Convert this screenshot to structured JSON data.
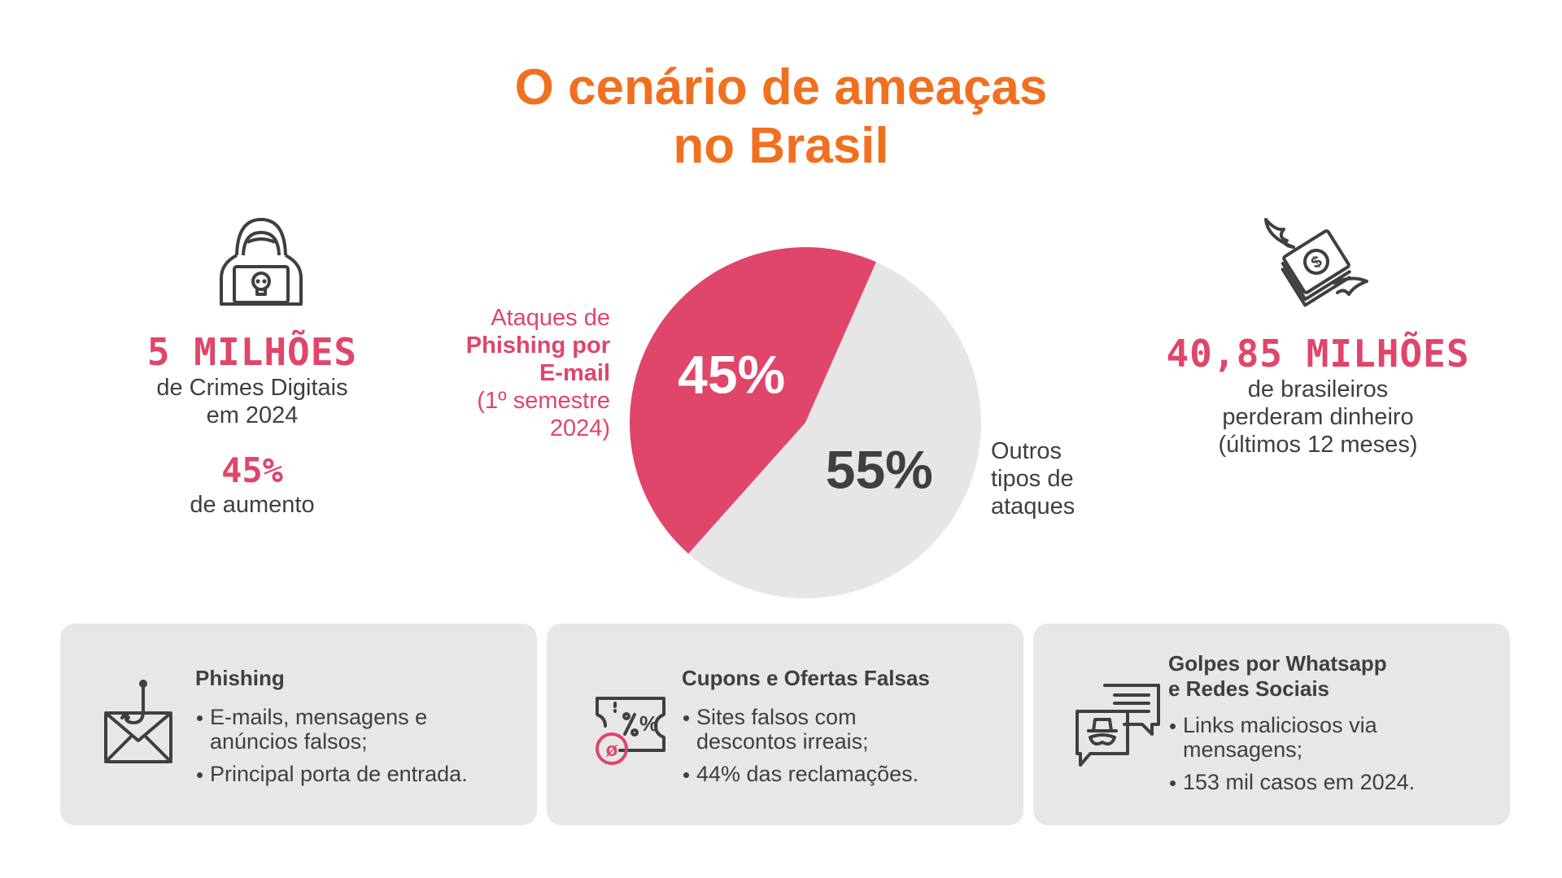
{
  "title": {
    "line1": "O cenário de ameaças",
    "line2": "no Brasil"
  },
  "left_stat": {
    "icon": "hacker-icon",
    "big": "5 MILHÕES",
    "line1": "de Crimes Digitais",
    "line2": "em 2024",
    "pct": "45%",
    "pct_text": "de aumento"
  },
  "right_stat": {
    "icon": "flying-money-icon",
    "big": "40,85 MILHÕES",
    "line1": "de brasileiros",
    "line2": "perderam dinheiro",
    "line3": "(últimos 12 meses)"
  },
  "chart_data": {
    "type": "pie",
    "slices": [
      {
        "label_lines": [
          "Ataques de",
          "Phishing por",
          "E-mail",
          "(1º semestre",
          "2024)"
        ],
        "value": 45,
        "display": "45%",
        "color": "#e0456a"
      },
      {
        "label_lines": [
          "Outros",
          "tipos de",
          "ataques"
        ],
        "value": 55,
        "display": "55%",
        "color": "#e6e6e6"
      }
    ]
  },
  "cards": [
    {
      "icon": "email-hook-icon",
      "title_lines": [
        "Phishing"
      ],
      "bullets": [
        [
          "E-mails, mensagens e",
          "anúncios falsos;"
        ],
        [
          "Principal porta de entrada."
        ]
      ]
    },
    {
      "icon": "coupon-icon",
      "title_lines": [
        "Cupons e Ofertas Falsas"
      ],
      "bullets": [
        [
          "Sites falsos com",
          "descontos irreais;"
        ],
        [
          "44% das reclamações."
        ]
      ]
    },
    {
      "icon": "chat-spy-icon",
      "title_lines": [
        "Golpes por Whatsapp",
        "e Redes Sociais"
      ],
      "bullets": [
        [
          "Links maliciosos via",
          "mensagens;"
        ],
        [
          "153 mil casos em 2024."
        ]
      ]
    }
  ],
  "colors": {
    "accent_orange": "#f07020",
    "accent_pink": "#e0456a",
    "card_bg": "#e7e7e7",
    "text_dark": "#3f3f3f"
  }
}
